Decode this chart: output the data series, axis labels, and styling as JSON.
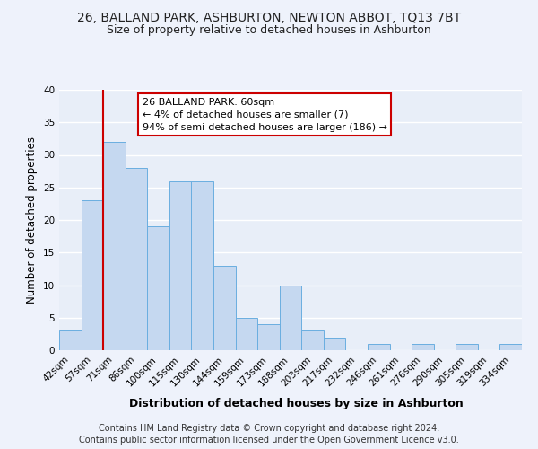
{
  "title": "26, BALLAND PARK, ASHBURTON, NEWTON ABBOT, TQ13 7BT",
  "subtitle": "Size of property relative to detached houses in Ashburton",
  "xlabel": "Distribution of detached houses by size in Ashburton",
  "ylabel": "Number of detached properties",
  "bar_labels": [
    "42sqm",
    "57sqm",
    "71sqm",
    "86sqm",
    "100sqm",
    "115sqm",
    "130sqm",
    "144sqm",
    "159sqm",
    "173sqm",
    "188sqm",
    "203sqm",
    "217sqm",
    "232sqm",
    "246sqm",
    "261sqm",
    "276sqm",
    "290sqm",
    "305sqm",
    "319sqm",
    "334sqm"
  ],
  "bar_values": [
    3,
    23,
    32,
    28,
    19,
    26,
    26,
    13,
    5,
    4,
    10,
    3,
    2,
    0,
    1,
    0,
    1,
    0,
    1,
    0,
    1
  ],
  "bar_color": "#c5d8f0",
  "bar_edge_color": "#6aaee0",
  "ylim": [
    0,
    40
  ],
  "yticks": [
    0,
    5,
    10,
    15,
    20,
    25,
    30,
    35,
    40
  ],
  "red_line_x": 1.5,
  "annotation_title": "26 BALLAND PARK: 60sqm",
  "annotation_line1": "← 4% of detached houses are smaller (7)",
  "annotation_line2": "94% of semi-detached houses are larger (186) →",
  "annotation_box_color": "#ffffff",
  "annotation_box_edge": "#cc0000",
  "red_line_color": "#cc0000",
  "footer_line1": "Contains HM Land Registry data © Crown copyright and database right 2024.",
  "footer_line2": "Contains public sector information licensed under the Open Government Licence v3.0.",
  "bg_color": "#e8eef8",
  "grid_color": "#ffffff",
  "title_fontsize": 10,
  "subtitle_fontsize": 9,
  "xlabel_fontsize": 9,
  "ylabel_fontsize": 8.5,
  "tick_fontsize": 7.5,
  "footer_fontsize": 7,
  "annot_fontsize": 8
}
